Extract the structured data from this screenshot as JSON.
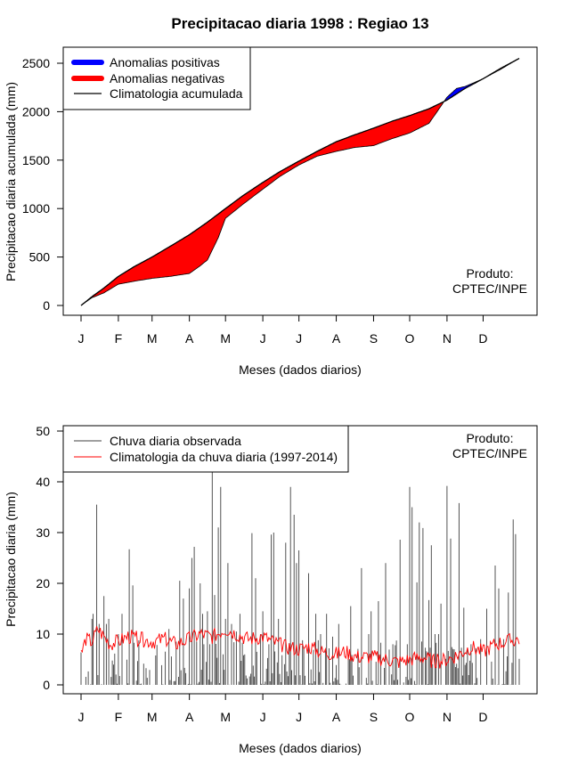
{
  "chart_data": [
    {
      "type": "area",
      "title": "Precipitacao diaria 1998 : Regiao 13",
      "xlabel": "Meses (dados diarios)",
      "ylabel": "Precipitacao diaria acumulada (mm)",
      "x_tick_labels": [
        "J",
        "F",
        "M",
        "A",
        "M",
        "J",
        "J",
        "A",
        "S",
        "O",
        "N",
        "D"
      ],
      "x_tick_days": [
        1,
        32,
        60,
        91,
        121,
        152,
        182,
        213,
        244,
        274,
        305,
        335
      ],
      "xlim": [
        1,
        365
      ],
      "ylim": [
        0,
        2500
      ],
      "y_ticks": [
        0,
        500,
        1000,
        1500,
        2000,
        2500
      ],
      "legend": [
        {
          "label": "Anomalias positivas",
          "color": "#0000ff"
        },
        {
          "label": "Anomalias negativas",
          "color": "#ff0000"
        },
        {
          "label": "Climatologia acumulada",
          "color": "#000000"
        }
      ],
      "annotation": [
        "Produto:",
        "CPTEC/INPE"
      ],
      "climatology_cumulative": {
        "day": [
          1,
          10,
          20,
          32,
          45,
          60,
          75,
          91,
          106,
          121,
          135,
          152,
          166,
          182,
          197,
          213,
          228,
          244,
          259,
          274,
          290,
          305,
          320,
          335,
          350,
          365
        ],
        "mm": [
          0,
          90,
          180,
          300,
          400,
          500,
          610,
          730,
          860,
          1000,
          1130,
          1270,
          1380,
          1490,
          1590,
          1690,
          1760,
          1830,
          1900,
          1960,
          2030,
          2120,
          2240,
          2340,
          2450,
          2550
        ]
      },
      "observed_cumulative": {
        "day": [
          1,
          10,
          20,
          32,
          45,
          60,
          75,
          91,
          100,
          106,
          115,
          121,
          135,
          152,
          166,
          182,
          197,
          213,
          228,
          244,
          259,
          274,
          290,
          296,
          305,
          313,
          320,
          335,
          350,
          365
        ],
        "mm": [
          0,
          80,
          130,
          220,
          250,
          280,
          300,
          330,
          410,
          470,
          700,
          900,
          1040,
          1200,
          1330,
          1450,
          1540,
          1590,
          1630,
          1650,
          1720,
          1780,
          1880,
          1985,
          2150,
          2240,
          2260,
          2340,
          2440,
          2550
        ]
      }
    },
    {
      "type": "bar",
      "xlabel": "Meses (dados diarios)",
      "ylabel": "Precipitacao diaria (mm)",
      "x_tick_labels": [
        "J",
        "F",
        "M",
        "A",
        "M",
        "J",
        "J",
        "A",
        "S",
        "O",
        "N",
        "D"
      ],
      "x_tick_days": [
        1,
        32,
        60,
        91,
        121,
        152,
        182,
        213,
        244,
        274,
        305,
        335
      ],
      "xlim": [
        1,
        365
      ],
      "ylim": [
        0,
        50
      ],
      "y_ticks": [
        0,
        10,
        20,
        30,
        40,
        50
      ],
      "legend": [
        {
          "label": "Chuva diaria observada",
          "color": "#404040"
        },
        {
          "label": "Climatologia da chuva diaria (1997-2014)",
          "color": "#ff0000"
        }
      ],
      "annotation": [
        "Produto:",
        "CPTEC/INPE"
      ],
      "peaks": {
        "day": [
          10,
          11,
          14,
          16,
          20,
          22,
          24,
          32,
          35,
          41,
          44,
          74,
          83,
          86,
          91,
          93,
          95,
          100,
          102,
          106,
          108,
          110,
          112,
          115,
          117,
          119,
          121,
          123,
          126,
          130,
          133,
          137,
          143,
          146,
          150,
          152,
          157,
          159,
          161,
          165,
          171,
          175,
          178,
          180,
          182,
          190,
          196,
          200,
          205,
          210,
          215,
          225,
          234,
          240,
          242,
          248,
          254,
          260,
          266,
          272,
          274,
          276,
          280,
          282,
          285,
          290,
          292,
          295,
          298,
          300,
          305,
          308,
          311,
          315,
          319,
          325,
          333,
          338,
          345,
          348,
          352,
          356,
          360,
          362
        ],
        "mm": [
          13,
          14,
          35.5,
          12,
          17.5,
          12,
          13,
          10,
          14,
          26.7,
          19.6,
          11,
          20.5,
          17,
          19,
          25,
          27.2,
          20,
          14,
          14.5,
          8,
          42,
          17.7,
          31,
          39,
          6,
          13,
          24,
          12,
          10.5,
          14,
          6,
          29.9,
          21,
          10,
          14.5,
          8,
          29.6,
          30,
          13,
          28,
          39,
          33.5,
          24,
          26.5,
          22,
          14,
          10,
          14,
          9.5,
          12,
          15.5,
          23,
          10,
          14.5,
          16.5,
          24,
          8,
          28.6,
          8,
          39,
          35,
          20.2,
          32,
          30.9,
          16.7,
          27.5,
          10,
          10,
          16,
          39.2,
          28.8,
          7,
          35.8,
          15.2,
          8,
          9,
          15,
          23.5,
          19,
          9,
          18.2,
          32.6,
          29.7
        ]
      },
      "climatology_daily": {
        "day": [
          1,
          5,
          10,
          15,
          20,
          25,
          32,
          40,
          50,
          60,
          70,
          80,
          91,
          100,
          110,
          121,
          130,
          140,
          152,
          160,
          170,
          182,
          190,
          200,
          213,
          220,
          230,
          244,
          255,
          265,
          274,
          285,
          295,
          305,
          315,
          325,
          335,
          345,
          355,
          365
        ],
        "mm": [
          6,
          9,
          8.5,
          11,
          9.5,
          8,
          8.5,
          9.5,
          9,
          8.5,
          9,
          8,
          9,
          10,
          9.5,
          11,
          10,
          9,
          9.5,
          8.5,
          7.5,
          7,
          7.5,
          6.5,
          6,
          6.5,
          5.5,
          5.5,
          5,
          4.5,
          5,
          5.5,
          4.5,
          5,
          6,
          7.5,
          6.5,
          8,
          8.5,
          9
        ]
      }
    }
  ]
}
